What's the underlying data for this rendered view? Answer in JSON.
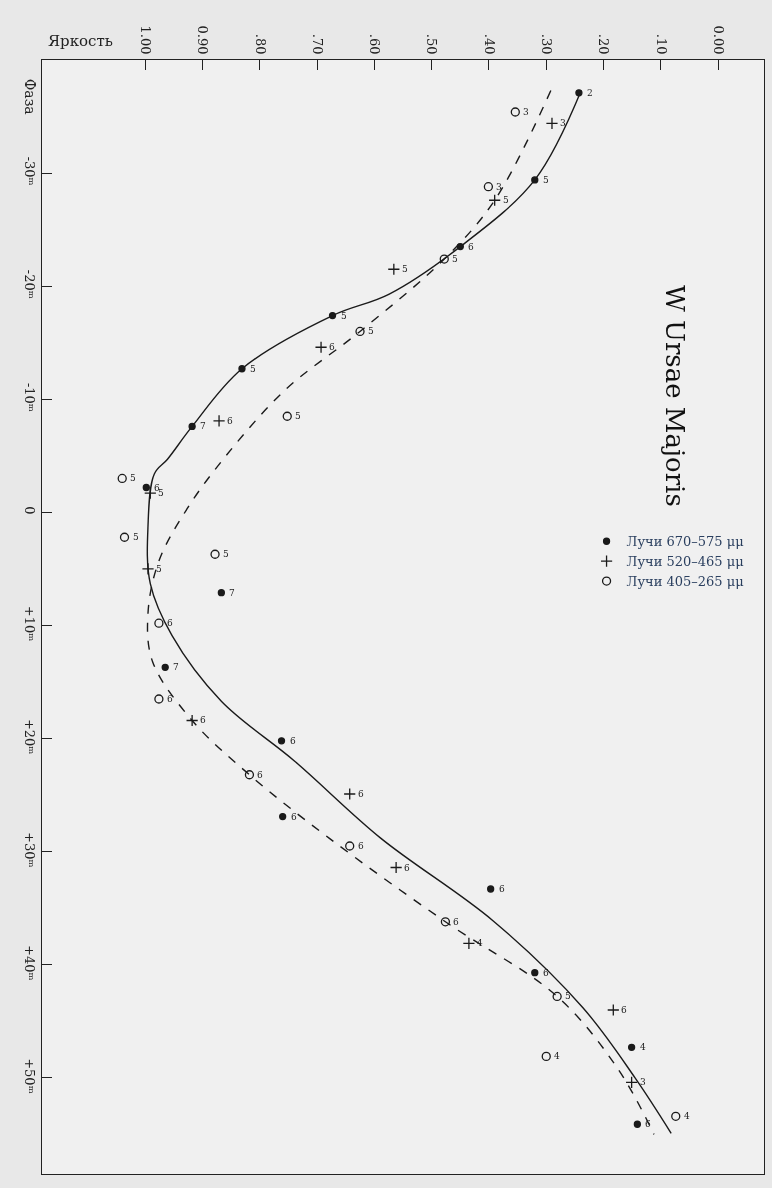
{
  "chart_data": {
    "type": "scatter",
    "orientation": "horizontal",
    "title": "W Ursae Majoris",
    "xlabel": "Яркость",
    "ylabel": "Фаза",
    "xlim": [
      1.18,
      -0.08
    ],
    "xticks": [
      {
        "value": 1.0,
        "label": "1.00"
      },
      {
        "value": 0.9,
        "label": "0.90"
      },
      {
        "value": 0.8,
        "label": ".80"
      },
      {
        "value": 0.7,
        "label": ".70"
      },
      {
        "value": 0.6,
        "label": ".60"
      },
      {
        "value": 0.5,
        "label": ".50"
      },
      {
        "value": 0.4,
        "label": ".40"
      },
      {
        "value": 0.3,
        "label": ".30"
      },
      {
        "value": 0.2,
        "label": ".20"
      },
      {
        "value": 0.1,
        "label": ".10"
      },
      {
        "value": 0,
        "label": "0.00"
      }
    ],
    "ylim": [
      58.5,
      -40
    ],
    "yticks": [
      {
        "value": -30,
        "label": "-30ᵐ"
      },
      {
        "value": -20,
        "label": "-20ᵐ"
      },
      {
        "value": -10,
        "label": "-10ᵐ"
      },
      0,
      {
        "value": 10,
        "label": "+10ᵐ"
      },
      {
        "value": 20,
        "label": "+20ᵐ"
      },
      {
        "value": 30,
        "label": "+30ᵐ"
      },
      {
        "value": 40,
        "label": "+40ᵐ"
      },
      {
        "value": 50,
        "label": "+50ᵐ"
      }
    ],
    "grid": false,
    "legend": "right",
    "series": [
      {
        "type": "line",
        "color": "#1a1a1a",
        "line_style": "solid",
        "marker": "none",
        "x": [
          -37.3,
          -29.4,
          -23.5,
          -19.3,
          -17.4,
          -12.7,
          -7.6,
          -4.7,
          -3.4,
          1.2,
          6.3,
          10.9,
          16.7,
          22.0,
          28.8,
          36.1,
          43.8,
          50.0,
          54.9
        ],
        "values": [
          0.239,
          0.32,
          0.45,
          0.574,
          0.673,
          0.831,
          0.918,
          0.961,
          0.984,
          0.995,
          0.991,
          0.953,
          0.867,
          0.739,
          0.589,
          0.393,
          0.236,
          0.145,
          0.082
        ]
      },
      {
        "name": "Лучи 670–575 μμ",
        "color": "#1a1a1a",
        "marker": "circle",
        "x": [
          -37.1,
          -29.4,
          -23.5,
          -17.4,
          -12.7,
          -7.6,
          -2.2,
          7.1,
          13.7,
          20.2,
          26.9,
          33.3,
          40.7,
          47.3,
          54.1
        ],
        "values": [
          0.243,
          0.32,
          0.45,
          0.673,
          0.831,
          0.918,
          0.998,
          0.867,
          0.965,
          0.762,
          0.76,
          0.397,
          0.32,
          0.151,
          0.141
        ]
      },
      {
        "name": "Лучи 520–465 μμ",
        "color": "#1a1a1a",
        "marker": "cross",
        "x": [
          -34.4,
          -27.6,
          -21.5,
          -14.6,
          -8.1,
          -1.7,
          5.0,
          18.4,
          24.9,
          31.4,
          38.1,
          44.0,
          50.4
        ],
        "values": [
          0.29,
          0.39,
          0.566,
          0.693,
          0.871,
          0.991,
          0.995,
          0.918,
          0.643,
          0.562,
          0.435,
          0.183,
          0.151
        ]
      },
      {
        "type": "line",
        "color": "#1a1a1a",
        "line_style": "dashed",
        "marker": "none",
        "x": [
          -37.3,
          -27.6,
          -22.4,
          -16.0,
          -10.9,
          -5.0,
          -0.3,
          4.3,
          8.9,
          13.2,
          18.4,
          23.2,
          28.8,
          36.2,
          42.8,
          49.2,
          55.0
        ],
        "values": [
          0.292,
          0.39,
          0.478,
          0.625,
          0.754,
          0.859,
          0.927,
          0.976,
          0.995,
          0.987,
          0.918,
          0.818,
          0.679,
          0.476,
          0.281,
          0.175,
          0.112
        ]
      },
      {
        "name": "Лучи 405–265 μμ",
        "color": "#1a1a1a",
        "marker": "circle-open",
        "x": [
          -35.4,
          -28.8,
          -22.4,
          -16.0,
          -8.5,
          -3.0,
          2.2,
          3.7,
          9.8,
          16.5,
          23.2,
          29.5,
          36.2,
          42.8,
          48.1,
          53.4
        ],
        "values": [
          0.354,
          0.401,
          0.478,
          0.625,
          0.752,
          1.04,
          1.036,
          0.878,
          0.976,
          0.976,
          0.818,
          0.643,
          0.476,
          0.281,
          0.3,
          0.074
        ]
      }
    ],
    "annotations": [
      {
        "text": "2",
        "x": 0.243,
        "y": -37.1
      },
      {
        "text": "5",
        "x": 0.32,
        "y": -29.4
      },
      {
        "text": "6",
        "x": 0.45,
        "y": -23.5
      },
      {
        "text": "5",
        "x": 0.673,
        "y": -17.4
      },
      {
        "text": "5",
        "x": 0.831,
        "y": -12.7
      },
      {
        "text": "7",
        "x": 0.918,
        "y": -7.6
      },
      {
        "text": "6",
        "x": 0.998,
        "y": -2.2
      },
      {
        "text": "7",
        "x": 0.867,
        "y": 7.1
      },
      {
        "text": "7",
        "x": 0.965,
        "y": 13.7
      },
      {
        "text": "6",
        "x": 0.762,
        "y": 20.2
      },
      {
        "text": "6",
        "x": 0.76,
        "y": 26.9
      },
      {
        "text": "6",
        "x": 0.397,
        "y": 33.3
      },
      {
        "text": "6",
        "x": 0.32,
        "y": 40.7
      },
      {
        "text": "4",
        "x": 0.151,
        "y": 47.3
      },
      {
        "text": "6",
        "x": 0.141,
        "y": 54.1
      },
      {
        "text": "3",
        "x": 0.29,
        "y": -34.4
      },
      {
        "text": "5",
        "x": 0.39,
        "y": -27.6
      },
      {
        "text": "5",
        "x": 0.566,
        "y": -21.5
      },
      {
        "text": "6",
        "x": 0.693,
        "y": -14.6
      },
      {
        "text": "6",
        "x": 0.871,
        "y": -8.1
      },
      {
        "text": "5",
        "x": 0.991,
        "y": -1.7
      },
      {
        "text": "5",
        "x": 0.995,
        "y": 5.0
      },
      {
        "text": "6",
        "x": 0.918,
        "y": 18.4
      },
      {
        "text": "6",
        "x": 0.643,
        "y": 24.9
      },
      {
        "text": "6",
        "x": 0.562,
        "y": 31.4
      },
      {
        "text": "4",
        "x": 0.435,
        "y": 38.1
      },
      {
        "text": "6",
        "x": 0.183,
        "y": 44.0
      },
      {
        "text": "3",
        "x": 0.151,
        "y": 50.4
      },
      {
        "text": "3",
        "x": 0.354,
        "y": -35.4
      },
      {
        "text": "3",
        "x": 0.401,
        "y": -28.8
      },
      {
        "text": "5",
        "x": 0.478,
        "y": -22.4
      },
      {
        "text": "5",
        "x": 0.625,
        "y": -16.0
      },
      {
        "text": "5",
        "x": 0.752,
        "y": -8.5
      },
      {
        "text": "5",
        "x": 1.04,
        "y": -3.0
      },
      {
        "text": "5",
        "x": 1.036,
        "y": 2.2
      },
      {
        "text": "5",
        "x": 0.878,
        "y": 3.7
      },
      {
        "text": "6",
        "x": 0.976,
        "y": 9.8
      },
      {
        "text": "6",
        "x": 0.976,
        "y": 16.5
      },
      {
        "text": "6",
        "x": 0.818,
        "y": 23.2
      },
      {
        "text": "6",
        "x": 0.643,
        "y": 29.5
      },
      {
        "text": "6",
        "x": 0.476,
        "y": 36.2
      },
      {
        "text": "5",
        "x": 0.281,
        "y": 42.8
      },
      {
        "text": "4",
        "x": 0.3,
        "y": 48.1
      },
      {
        "text": "4",
        "x": 0.074,
        "y": 53.4
      }
    ]
  }
}
